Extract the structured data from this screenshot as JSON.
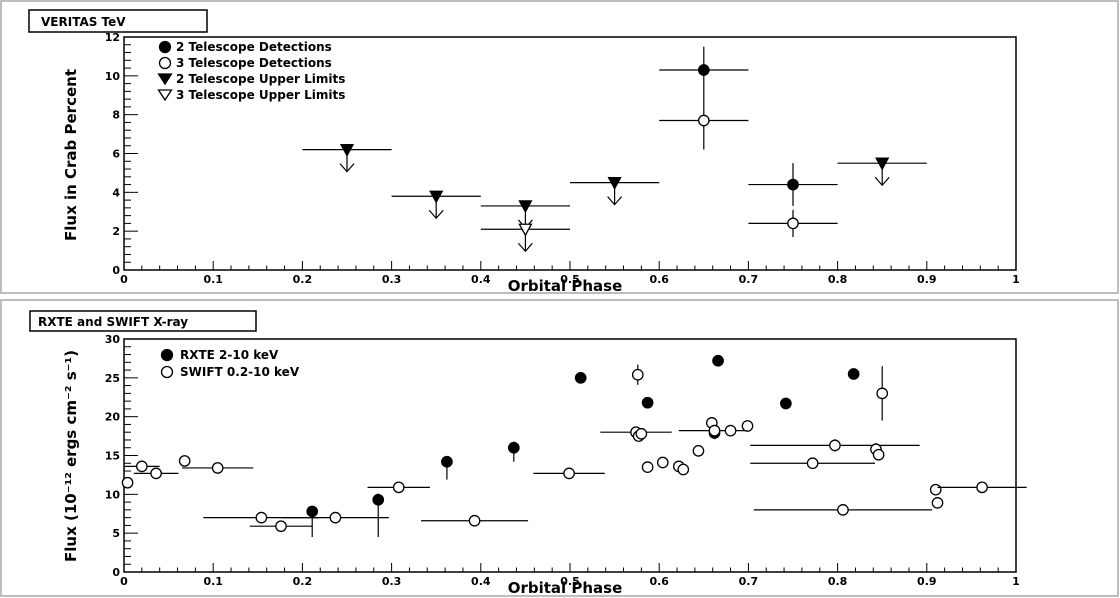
{
  "chart_data": [
    {
      "type": "scatter",
      "title": "VERITAS TeV",
      "xlabel": "Orbital Phase",
      "ylabel": "Flux in Crab Percent",
      "xlim": [
        0,
        1
      ],
      "ylim": [
        0,
        12
      ],
      "x_major_ticks": [
        0,
        0.1,
        0.2,
        0.3,
        0.4,
        0.5,
        0.6,
        0.7,
        0.8,
        0.9,
        1
      ],
      "x_tick_labels": [
        "0",
        "0.1",
        "0.2",
        "0.3",
        "0.4",
        "0.5",
        "0.6",
        "0.7",
        "0.8",
        "0.9",
        "1"
      ],
      "y_major_ticks": [
        0,
        2,
        4,
        6,
        8,
        10,
        12
      ],
      "y_tick_labels": [
        "0",
        "2",
        "4",
        "6",
        "8",
        "10",
        "12"
      ],
      "legend_position": "top-left",
      "legend": [
        "2 Telescope Detections",
        "3 Telescope Detections",
        "2 Telescope Upper Limits",
        "3 Telescope Upper Limits"
      ],
      "series": [
        {
          "name": "2 Telescope Detections",
          "marker": "filled-circle",
          "points": [
            {
              "x": 0.65,
              "y": 10.3,
              "xerr": 0.05,
              "yerr": [
                1.1,
                1.2
              ]
            },
            {
              "x": 0.75,
              "y": 4.4,
              "xerr": 0.05,
              "yerr": [
                1.1,
                1.1
              ]
            }
          ]
        },
        {
          "name": "3 Telescope Detections",
          "marker": "open-circle",
          "points": [
            {
              "x": 0.65,
              "y": 7.7,
              "xerr": 0.05,
              "yerr": [
                1.5,
                1.5
              ]
            },
            {
              "x": 0.75,
              "y": 2.4,
              "xerr": 0.05,
              "yerr": [
                0.7,
                0.7
              ]
            }
          ]
        },
        {
          "name": "2 Telescope Upper Limits",
          "marker": "filled-triangle-down",
          "points": [
            {
              "x": 0.25,
              "y": 6.2,
              "xerr": 0.05
            },
            {
              "x": 0.35,
              "y": 3.8,
              "xerr": 0.05
            },
            {
              "x": 0.45,
              "y": 3.3,
              "xerr": 0.05
            },
            {
              "x": 0.55,
              "y": 4.5,
              "xerr": 0.05
            },
            {
              "x": 0.85,
              "y": 5.5,
              "xerr": 0.05
            }
          ]
        },
        {
          "name": "3 Telescope Upper Limits",
          "marker": "open-triangle-down",
          "points": [
            {
              "x": 0.45,
              "y": 2.1,
              "xerr": 0.05
            }
          ]
        }
      ]
    },
    {
      "type": "scatter",
      "title": "RXTE  and SWIFT X-ray",
      "xlabel": "Orbital Phase",
      "ylabel": "Flux (10⁻¹² ergs cm⁻² s⁻¹)",
      "xlim": [
        0,
        1
      ],
      "ylim": [
        0,
        30
      ],
      "x_major_ticks": [
        0,
        0.1,
        0.2,
        0.3,
        0.4,
        0.5,
        0.6,
        0.7,
        0.8,
        0.9,
        1
      ],
      "x_tick_labels": [
        "0",
        "0.1",
        "0.2",
        "0.3",
        "0.4",
        "0.5",
        "0.6",
        "0.7",
        "0.8",
        "0.9",
        "1"
      ],
      "y_major_ticks": [
        0,
        5,
        10,
        15,
        20,
        25,
        30
      ],
      "y_tick_labels": [
        "0",
        "5",
        "10",
        "15",
        "20",
        "25",
        "30"
      ],
      "legend_position": "top-left",
      "legend": [
        "RXTE 2-10 keV",
        "SWIFT 0.2-10 keV"
      ],
      "series": [
        {
          "name": "RXTE 2-10 keV",
          "marker": "filled-circle",
          "points": [
            {
              "x": 0.211,
              "y": 7.8,
              "xerr": 0,
              "yerr": [
                3.3,
                0.4
              ]
            },
            {
              "x": 0.285,
              "y": 9.3,
              "xerr": 0,
              "yerr": [
                4.8,
                0.8
              ]
            },
            {
              "x": 0.362,
              "y": 14.2,
              "xerr": 0,
              "yerr": [
                2.3,
                0.5
              ]
            },
            {
              "x": 0.437,
              "y": 16.0,
              "xerr": 0,
              "yerr": [
                1.8,
                0.8
              ]
            },
            {
              "x": 0.512,
              "y": 25.0,
              "xerr": 0,
              "yerr": [
                0.5,
                0.5
              ]
            },
            {
              "x": 0.587,
              "y": 21.8,
              "xerr": 0,
              "yerr": [
                0.4,
                0.4
              ]
            },
            {
              "x": 0.662,
              "y": 17.9,
              "xerr": 0,
              "yerr": [
                0.8,
                0.8
              ]
            },
            {
              "x": 0.666,
              "y": 27.2,
              "xerr": 0,
              "yerr": [
                0.4,
                0.4
              ]
            },
            {
              "x": 0.742,
              "y": 21.7,
              "xerr": 0,
              "yerr": [
                0.3,
                0.3
              ]
            },
            {
              "x": 0.818,
              "y": 25.5,
              "xerr": 0,
              "yerr": [
                0.5,
                0.5
              ]
            }
          ]
        },
        {
          "name": "SWIFT 0.2-10 keV",
          "marker": "open-circle",
          "points": [
            {
              "x": 0.004,
              "y": 11.5,
              "xerr": 0,
              "yerr": [
                0.4,
                0.4
              ]
            },
            {
              "x": 0.02,
              "y": 13.6,
              "xerr": 0.02,
              "yerr": [
                0.6,
                0.6
              ]
            },
            {
              "x": 0.036,
              "y": 12.7,
              "xerr": 0.025,
              "yerr": [
                0.5,
                0.5
              ]
            },
            {
              "x": 0.068,
              "y": 14.3,
              "xerr": 0,
              "yerr": [
                0.7,
                0.7
              ]
            },
            {
              "x": 0.105,
              "y": 13.4,
              "xerr": 0.04,
              "yerr": [
                0.6,
                0.6
              ]
            },
            {
              "x": 0.154,
              "y": 7.0,
              "xerr": 0.065,
              "yerr": [
                0,
                0
              ]
            },
            {
              "x": 0.176,
              "y": 5.9,
              "xerr": 0.035,
              "yerr": [
                0,
                0
              ]
            },
            {
              "x": 0.237,
              "y": 7.0,
              "xerr": 0.06,
              "yerr": [
                0,
                0
              ]
            },
            {
              "x": 0.308,
              "y": 10.9,
              "xerr": 0.035,
              "yerr": [
                0,
                0
              ]
            },
            {
              "x": 0.393,
              "y": 6.6,
              "xerr": 0.06,
              "yerr": [
                0,
                0
              ]
            },
            {
              "x": 0.499,
              "y": 12.7,
              "xerr": 0.04,
              "yerr": [
                0.5,
                0.5
              ]
            },
            {
              "x": 0.574,
              "y": 18.0,
              "xerr": 0.04,
              "yerr": [
                0.5,
                0.5
              ]
            },
            {
              "x": 0.576,
              "y": 25.4,
              "xerr": 0,
              "yerr": [
                1.3,
                1.3
              ]
            },
            {
              "x": 0.577,
              "y": 17.5,
              "xerr": 0,
              "yerr": [
                0.5,
                0.5
              ]
            },
            {
              "x": 0.58,
              "y": 17.8,
              "xerr": 0,
              "yerr": [
                0.4,
                0.4
              ]
            },
            {
              "x": 0.587,
              "y": 13.5,
              "xerr": 0,
              "yerr": [
                0.6,
                0.6
              ]
            },
            {
              "x": 0.604,
              "y": 14.1,
              "xerr": 0,
              "yerr": [
                0.5,
                0.5
              ]
            },
            {
              "x": 0.622,
              "y": 13.6,
              "xerr": 0,
              "yerr": [
                0.5,
                0.5
              ]
            },
            {
              "x": 0.627,
              "y": 13.2,
              "xerr": 0,
              "yerr": [
                0.5,
                0.5
              ]
            },
            {
              "x": 0.644,
              "y": 15.6,
              "xerr": 0,
              "yerr": [
                0.6,
                0.6
              ]
            },
            {
              "x": 0.659,
              "y": 19.2,
              "xerr": 0,
              "yerr": [
                0.6,
                0.6
              ]
            },
            {
              "x": 0.662,
              "y": 18.2,
              "xerr": 0.04,
              "yerr": [
                0.5,
                0.5
              ]
            },
            {
              "x": 0.68,
              "y": 18.2,
              "xerr": 0,
              "yerr": [
                0.4,
                0.4
              ]
            },
            {
              "x": 0.699,
              "y": 18.8,
              "xerr": 0,
              "yerr": [
                0.5,
                0.5
              ]
            },
            {
              "x": 0.772,
              "y": 14.0,
              "xerr": 0.07,
              "yerr": [
                0.4,
                0.4
              ]
            },
            {
              "x": 0.797,
              "y": 16.3,
              "xerr": 0.095,
              "yerr": [
                0.8,
                0.8
              ]
            },
            {
              "x": 0.806,
              "y": 8.0,
              "xerr": 0.1,
              "yerr": [
                0,
                0
              ]
            },
            {
              "x": 0.843,
              "y": 15.8,
              "xerr": 0,
              "yerr": [
                0.8,
                0.8
              ]
            },
            {
              "x": 0.846,
              "y": 15.1,
              "xerr": 0,
              "yerr": [
                0.5,
                0.5
              ]
            },
            {
              "x": 0.85,
              "y": 23.0,
              "xerr": 0,
              "yerr": [
                3.5,
                3.5
              ]
            },
            {
              "x": 0.91,
              "y": 10.6,
              "xerr": 0.005,
              "yerr": [
                0,
                0
              ]
            },
            {
              "x": 0.912,
              "y": 8.9,
              "xerr": 0,
              "yerr": [
                0,
                0
              ]
            },
            {
              "x": 0.962,
              "y": 10.9,
              "xerr": 0.05,
              "yerr": [
                0,
                0
              ]
            }
          ]
        }
      ]
    }
  ]
}
